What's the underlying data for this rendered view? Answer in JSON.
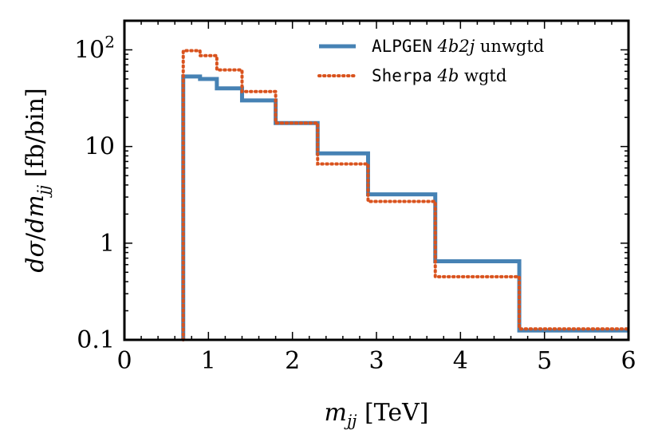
{
  "chart_data": {
    "type": "line",
    "subtype": "step-histogram",
    "title": "",
    "xlabel": {
      "var": "m",
      "sub": "jj",
      "unit": "[TeV]"
    },
    "ylabel": {
      "num": "dσ",
      "den_prefix": "dm",
      "sub": "jj",
      "unit": "[fb/bin]"
    },
    "xlim": [
      0,
      6
    ],
    "ylim": [
      0.1,
      200
    ],
    "yscale": "log",
    "x_ticks": [
      {
        "value": 0,
        "label": "0"
      },
      {
        "value": 1,
        "label": "1"
      },
      {
        "value": 2,
        "label": "2"
      },
      {
        "value": 3,
        "label": "3"
      },
      {
        "value": 4,
        "label": "4"
      },
      {
        "value": 5,
        "label": "5"
      },
      {
        "value": 6,
        "label": "6"
      }
    ],
    "y_ticks": [
      {
        "value": 0.1,
        "label": "0.1"
      },
      {
        "value": 1,
        "label": "1"
      },
      {
        "value": 10,
        "label": "10"
      },
      {
        "value": 100,
        "label": "10",
        "sup": "2"
      }
    ],
    "bin_edges": [
      0.7,
      0.9,
      1.1,
      1.4,
      1.8,
      2.3,
      2.9,
      3.7,
      4.7,
      6.0
    ],
    "legend_position": "top-right",
    "series": [
      {
        "name": "ALPGEN 4b2j unwgtd",
        "legend": {
          "mono": "ALPGEN",
          "italic": "4b2j",
          "rest": "unwgtd"
        },
        "color": "#4682b4",
        "style": "solid",
        "values": [
          53,
          50,
          40,
          30,
          17.5,
          8.5,
          3.2,
          0.65,
          0.125
        ]
      },
      {
        "name": "Sherpa 4b wgtd",
        "legend": {
          "mono": "Sherpa",
          "italic": "4b",
          "rest": "wgtd"
        },
        "color": "#d9531e",
        "style": "dotted",
        "values": [
          98,
          87,
          62,
          37,
          17.5,
          6.6,
          2.7,
          0.45,
          0.13
        ]
      }
    ]
  }
}
